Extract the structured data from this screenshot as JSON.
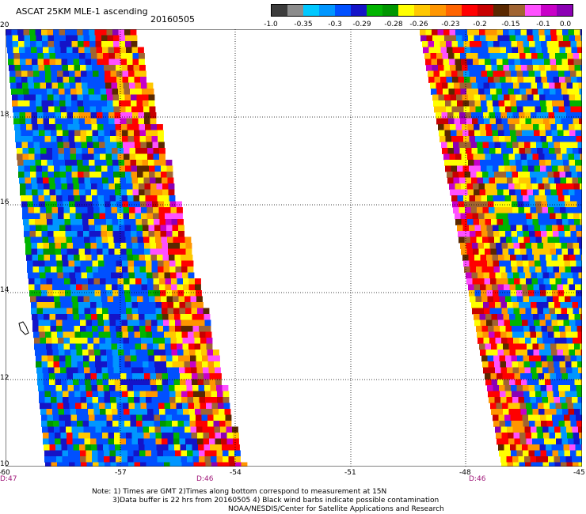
{
  "header": {
    "title": "ASCAT 25KM MLE-1 ascending",
    "date": "20160505"
  },
  "colorbar": {
    "colors": [
      "#3c3c3c",
      "#8c8c8c",
      "#00c8ff",
      "#0096ff",
      "#0050ff",
      "#1414c8",
      "#00b400",
      "#009600",
      "#ffff00",
      "#ffc800",
      "#ff9600",
      "#ff6400",
      "#ff0000",
      "#c80000",
      "#5a2800",
      "#a06432",
      "#ff50ff",
      "#c800c8",
      "#8c00b4"
    ],
    "labels": [
      "-1.0",
      "-0.35",
      "-0.3",
      "-0.29",
      "-0.28",
      "-0.26",
      "-0.23",
      "-0.2",
      "-0.15",
      "-0.1",
      "0.0"
    ]
  },
  "axes": {
    "x_ticks": [
      "-60",
      "-57",
      "-54",
      "-51",
      "-48",
      "-45"
    ],
    "y_ticks": [
      "20",
      "18",
      "16",
      "14",
      "12",
      "10"
    ],
    "times": [
      "D:47",
      "D:46",
      "D:46"
    ]
  },
  "notes": {
    "line1": "Note: 1) Times are GMT 2)Times along bottom correspond to measurement at 15N",
    "line2": "3)Data buffer is 22 hrs from 20160505 4) Black wind barbs indicate possible contamination",
    "line3": "NOAA/NESDIS/Center for Satellite Applications and Research"
  }
}
